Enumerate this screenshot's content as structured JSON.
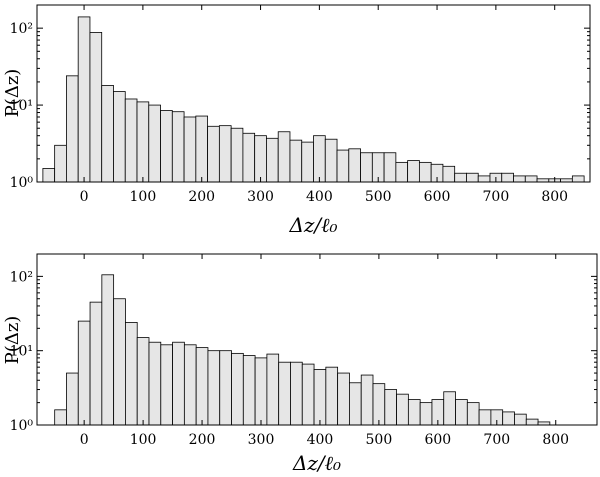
{
  "chart_data": [
    {
      "type": "bar",
      "yscale": "log",
      "xlabel": "Δz/ℓ₀",
      "ylabel": "P(Δz)",
      "xlim": [
        -80,
        860
      ],
      "ylim": [
        1,
        200
      ],
      "xticks": [
        "0",
        "100",
        "200",
        "300",
        "400",
        "500",
        "600",
        "700",
        "800"
      ],
      "yticks": [
        "10⁰",
        "10¹",
        "10²"
      ],
      "bin_width": 20,
      "bin_starts": [
        -70,
        -50,
        -30,
        -10,
        10,
        30,
        50,
        70,
        90,
        110,
        130,
        150,
        170,
        190,
        210,
        230,
        250,
        270,
        290,
        310,
        330,
        350,
        370,
        390,
        410,
        430,
        450,
        470,
        490,
        510,
        530,
        550,
        570,
        590,
        610,
        630,
        650,
        670,
        690,
        710,
        730,
        750,
        770,
        790,
        810,
        830
      ],
      "values": [
        1.5,
        3.0,
        24,
        140,
        88,
        18,
        15,
        12,
        11,
        10,
        8.5,
        8.2,
        7.0,
        7.2,
        5.3,
        5.4,
        5.0,
        4.3,
        4.0,
        3.7,
        4.5,
        3.5,
        3.3,
        4.0,
        3.6,
        2.6,
        2.7,
        2.4,
        2.4,
        2.4,
        1.8,
        1.9,
        1.8,
        1.7,
        1.6,
        1.3,
        1.3,
        1.2,
        1.3,
        1.3,
        1.2,
        1.2,
        1.1,
        1.1,
        1.1,
        1.2
      ]
    },
    {
      "type": "bar",
      "yscale": "log",
      "xlabel": "Δz/ℓ₀",
      "ylabel": "P(Δz)",
      "xlim": [
        -80,
        870
      ],
      "ylim": [
        1,
        200
      ],
      "xticks": [
        "0",
        "100",
        "200",
        "300",
        "400",
        "500",
        "600",
        "700",
        "800"
      ],
      "yticks": [
        "10⁰",
        "10¹",
        "10²"
      ],
      "bin_width": 20,
      "bin_starts": [
        -50,
        -30,
        -10,
        10,
        30,
        50,
        70,
        90,
        110,
        130,
        150,
        170,
        190,
        210,
        230,
        250,
        270,
        290,
        310,
        330,
        350,
        370,
        390,
        410,
        430,
        450,
        470,
        490,
        510,
        530,
        550,
        570,
        590,
        610,
        630,
        650,
        670,
        690,
        710,
        730,
        750,
        770,
        790
      ],
      "values": [
        1.6,
        5.0,
        25,
        45,
        105,
        50,
        24,
        15,
        13,
        12,
        13,
        12,
        11,
        10,
        10,
        9.2,
        8.6,
        8.0,
        9.0,
        7.0,
        7.0,
        6.6,
        5.6,
        6.0,
        5.0,
        3.7,
        4.7,
        3.6,
        3.0,
        2.6,
        2.2,
        2.0,
        2.2,
        2.8,
        2.2,
        2.0,
        1.6,
        1.6,
        1.5,
        1.4,
        1.2,
        1.1,
        1.0
      ]
    }
  ]
}
